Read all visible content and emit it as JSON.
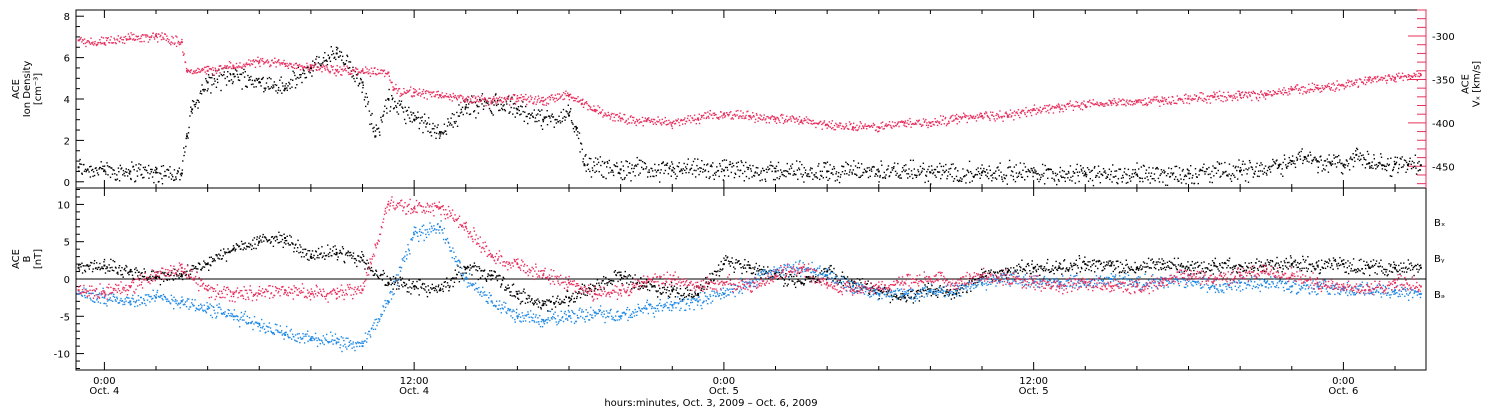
{
  "colors": {
    "black": "#000000",
    "pink": "#e8305f",
    "blue": "#1e88e5"
  },
  "x_axis": {
    "label": "hours:minutes, Oct.  3, 2009 – Oct.  6, 2009",
    "tick_labels": [
      {
        "t": 0,
        "time": "0:00",
        "date": "Oct. 4"
      },
      {
        "t": 12,
        "time": "12:00",
        "date": "Oct. 4"
      },
      {
        "t": 24,
        "time": "0:00",
        "date": "Oct. 5"
      },
      {
        "t": 36,
        "time": "12:00",
        "date": "Oct. 5"
      },
      {
        "t": 48,
        "time": "0:00",
        "date": "Oct. 6"
      }
    ]
  },
  "chart_data": [
    {
      "type": "scatter",
      "panel": "top",
      "ylabel_left": [
        "ACE",
        "Ion Density",
        "[cm⁻³]"
      ],
      "ylabel_right": [
        "ACE",
        "Vₓ [km/s]"
      ],
      "ylim": [
        -0.3,
        8.3
      ],
      "y2lim": [
        -475,
        -270
      ],
      "yticks": [
        0,
        2,
        4,
        6,
        8
      ],
      "y2ticks": [
        -300,
        -350,
        -400,
        -450
      ],
      "xlim": [
        -1.1,
        51.2
      ],
      "series": [
        {
          "name": "",
          "color": "black",
          "axis": "left",
          "x": [
            -1.0,
            0.0,
            1.0,
            2.0,
            3.0,
            3.2,
            3.4,
            4.0,
            5.0,
            6.0,
            7.0,
            8.0,
            9.0,
            10.0,
            10.5,
            11.0,
            12.0,
            13.0,
            14.0,
            15.0,
            16.0,
            17.0,
            18.0,
            18.3,
            18.6,
            20.0,
            22.0,
            24.0,
            26.0,
            28.0,
            30.0,
            32.0,
            34.0,
            36.0,
            38.0,
            40.0,
            42.0,
            44.0,
            45.5,
            46.0,
            46.5,
            47.0,
            47.5,
            48.0,
            48.5,
            49.0,
            49.5,
            50.0,
            50.5,
            51.0
          ],
          "y": [
            0.7,
            0.55,
            0.5,
            0.45,
            0.4,
            2.2,
            3.5,
            4.8,
            5.2,
            4.8,
            4.5,
            5.5,
            6.2,
            4.8,
            2.2,
            4.0,
            3.0,
            2.4,
            3.6,
            3.8,
            3.5,
            3.0,
            3.2,
            2.6,
            0.8,
            0.6,
            0.55,
            0.55,
            0.5,
            0.5,
            0.5,
            0.45,
            0.45,
            0.45,
            0.35,
            0.35,
            0.4,
            0.5,
            0.8,
            1.0,
            1.2,
            1.0,
            0.9,
            0.8,
            1.3,
            0.9,
            0.8,
            0.85,
            0.8,
            0.8
          ]
        },
        {
          "name": "",
          "color": "pink",
          "axis": "right",
          "x": [
            -1.0,
            0.0,
            1.0,
            2.0,
            3.0,
            3.2,
            4.0,
            5.0,
            6.0,
            7.0,
            8.0,
            9.0,
            10.0,
            11.0,
            11.2,
            12.0,
            13.0,
            14.0,
            15.0,
            16.0,
            17.0,
            18.0,
            18.5,
            19.0,
            20.0,
            21.0,
            22.0,
            23.0,
            24.0,
            25.0,
            26.0,
            27.0,
            28.0,
            29.0,
            30.0,
            31.0,
            32.0,
            33.0,
            34.0,
            35.0,
            36.0,
            37.0,
            38.0,
            39.0,
            40.0,
            41.0,
            42.0,
            43.0,
            44.0,
            45.0,
            46.0,
            47.0,
            48.0,
            49.0,
            50.0,
            51.0
          ],
          "y": [
            -305,
            -308,
            -303,
            -300,
            -307,
            -340,
            -340,
            -335,
            -330,
            -332,
            -335,
            -340,
            -340,
            -342,
            -362,
            -365,
            -368,
            -373,
            -375,
            -372,
            -375,
            -368,
            -378,
            -385,
            -395,
            -398,
            -400,
            -395,
            -390,
            -392,
            -395,
            -398,
            -402,
            -405,
            -405,
            -400,
            -400,
            -395,
            -392,
            -392,
            -385,
            -382,
            -380,
            -377,
            -375,
            -375,
            -372,
            -370,
            -368,
            -368,
            -362,
            -360,
            -357,
            -350,
            -348,
            -345
          ]
        }
      ]
    },
    {
      "type": "scatter",
      "panel": "bottom",
      "ylabel_left": [
        "ACE",
        "B",
        "[nT]"
      ],
      "ylim": [
        -12.2,
        12.2
      ],
      "yticks": [
        -10,
        -5,
        0,
        5,
        10
      ],
      "xlim": [
        -1.1,
        51.2
      ],
      "zero_line": true,
      "series": [
        {
          "name": "Bₓ",
          "color": "black",
          "x": [
            -1.0,
            0.0,
            1.0,
            2.0,
            3.0,
            4.0,
            5.0,
            6.0,
            7.0,
            8.0,
            9.0,
            10.0,
            11.0,
            12.0,
            13.0,
            14.0,
            15.0,
            16.0,
            17.0,
            18.0,
            19.0,
            20.0,
            21.0,
            22.0,
            23.0,
            24.0,
            25.0,
            26.0,
            27.0,
            28.0,
            29.0,
            30.0,
            31.0,
            32.0,
            33.0,
            34.0,
            35.0,
            36.0,
            37.0,
            38.0,
            39.0,
            40.0,
            41.0,
            42.0,
            43.0,
            44.0,
            45.0,
            46.0,
            47.0,
            48.0,
            49.0,
            50.0,
            51.0
          ],
          "y": [
            1.5,
            1.8,
            1.0,
            0.2,
            0.5,
            2.0,
            4.0,
            5.0,
            5.5,
            3.0,
            3.5,
            2.5,
            -0.5,
            -1.0,
            -1.5,
            1.5,
            0.5,
            -2.0,
            -3.5,
            -2.5,
            -1.0,
            0.5,
            -1.0,
            -1.5,
            -2.0,
            2.0,
            1.5,
            0.5,
            -0.5,
            1.0,
            -0.5,
            -1.5,
            -2.5,
            -1.5,
            -2.0,
            0.5,
            1.0,
            1.5,
            1.5,
            2.0,
            1.8,
            1.5,
            2.0,
            1.5,
            1.8,
            1.8,
            1.8,
            2.0,
            1.8,
            2.0,
            1.5,
            1.5,
            1.5
          ]
        },
        {
          "name": "Bᵧ",
          "color": "blue",
          "x": [
            -1.0,
            0.0,
            1.0,
            2.0,
            3.0,
            4.0,
            5.0,
            6.0,
            7.0,
            8.0,
            9.0,
            10.0,
            11.0,
            12.0,
            13.0,
            14.0,
            15.0,
            16.0,
            17.0,
            18.0,
            19.0,
            20.0,
            21.0,
            22.0,
            23.0,
            24.0,
            25.0,
            26.0,
            27.0,
            28.0,
            29.0,
            30.0,
            31.0,
            32.0,
            33.0,
            34.0,
            35.0,
            36.0,
            37.0,
            38.0,
            39.0,
            40.0,
            41.0,
            42.0,
            43.0,
            44.0,
            45.0,
            46.0,
            47.0,
            48.0,
            49.0,
            50.0,
            51.0
          ],
          "y": [
            -2.0,
            -2.5,
            -3.0,
            -2.5,
            -3.0,
            -4.0,
            -5.0,
            -6.0,
            -7.5,
            -8.0,
            -8.5,
            -9.0,
            -3.0,
            6.0,
            7.0,
            0.0,
            -3.0,
            -5.0,
            -5.5,
            -5.0,
            -4.5,
            -5.0,
            -4.0,
            -3.5,
            -3.0,
            -2.0,
            -0.5,
            1.0,
            1.5,
            0.5,
            -1.0,
            -2.0,
            -2.0,
            -1.5,
            -1.5,
            -0.5,
            0.0,
            -0.5,
            -0.5,
            -0.5,
            0.0,
            -0.5,
            -0.5,
            0.0,
            -1.0,
            -0.5,
            -0.5,
            -1.0,
            -1.0,
            -1.5,
            -1.5,
            -1.5,
            -2.0
          ]
        },
        {
          "name": "Bₔ",
          "color": "pink",
          "x": [
            -1.0,
            0.0,
            1.0,
            2.0,
            3.0,
            4.0,
            5.0,
            6.0,
            7.0,
            8.0,
            9.0,
            10.0,
            11.0,
            12.0,
            13.0,
            14.0,
            15.0,
            16.0,
            17.0,
            18.0,
            19.0,
            20.0,
            21.0,
            22.0,
            23.0,
            24.0,
            25.0,
            26.0,
            27.0,
            28.0,
            29.0,
            30.0,
            31.0,
            32.0,
            33.0,
            34.0,
            35.0,
            36.0,
            37.0,
            38.0,
            39.0,
            40.0,
            41.0,
            42.0,
            43.0,
            44.0,
            45.0,
            46.0,
            47.0,
            48.0,
            49.0,
            50.0,
            51.0
          ],
          "y": [
            -1.5,
            -1.8,
            -1.0,
            0.5,
            1.5,
            -1.5,
            -2.0,
            -2.0,
            -1.5,
            -2.0,
            -2.0,
            -1.5,
            10.0,
            9.5,
            9.5,
            7.0,
            3.0,
            2.0,
            0.5,
            -0.5,
            -2.0,
            -1.5,
            -0.5,
            0.0,
            -1.0,
            -0.5,
            -1.0,
            0.5,
            1.5,
            -0.5,
            -1.5,
            -1.0,
            -0.5,
            0.0,
            -0.5,
            0.5,
            0.0,
            -0.5,
            -1.0,
            -0.5,
            -1.0,
            -1.0,
            -0.5,
            0.5,
            0.0,
            0.5,
            1.0,
            0.5,
            -0.5,
            -1.0,
            -1.5,
            -0.5,
            -1.0
          ]
        }
      ]
    }
  ]
}
